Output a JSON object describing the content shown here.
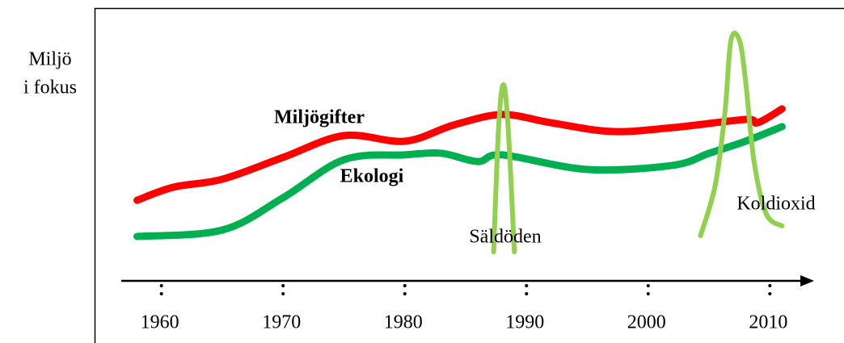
{
  "chart_data": {
    "type": "line",
    "ylabel": [
      "Miljö",
      "i fokus"
    ],
    "xlim": [
      1956.7,
      2013.5
    ],
    "xticks": [
      1960,
      1970,
      1980,
      1990,
      2000,
      2010
    ],
    "ylim": [
      0,
      100
    ],
    "annotations": [
      "Miljögifter",
      "Ekologi",
      "Säldöden",
      "Koldioxid"
    ],
    "series": [
      {
        "color": "#ff0000",
        "x": [
          1958,
          1961,
          1965,
          1970,
          1975,
          1980,
          1984,
          1988,
          1992,
          1997,
          2002,
          2008,
          2009,
          2011
        ],
        "values": [
          31.4,
          36.5,
          39.6,
          48.1,
          56.6,
          54.4,
          60.7,
          64.8,
          61.6,
          58.2,
          59.7,
          62.9,
          61.6,
          67.0
        ]
      },
      {
        "color": "#00b050",
        "x": [
          1958,
          1965,
          1970,
          1975,
          1980,
          1983,
          1986,
          1988,
          1995,
          2002,
          2005,
          2008,
          2011
        ],
        "values": [
          17.3,
          19.8,
          32.4,
          47.2,
          49.1,
          49.7,
          46.5,
          49.1,
          43.4,
          45.0,
          49.7,
          54.4,
          60.1
        ]
      },
      {
        "color": "#92d050",
        "x": [
          1987.3,
          1987.7,
          1988.1,
          1988.5,
          1989
        ],
        "values": [
          11.3,
          59.1,
          76.4,
          59.1,
          11.3
        ]
      },
      {
        "color": "#92d050",
        "x": [
          2004.3,
          2005.5,
          2006.3,
          2006.8,
          2007.5,
          2008,
          2008.7,
          2009.7,
          2011
        ],
        "values": [
          17.6,
          37.1,
          65.4,
          93.7,
          93.7,
          78.0,
          46.5,
          26.1,
          21.4
        ]
      }
    ]
  }
}
